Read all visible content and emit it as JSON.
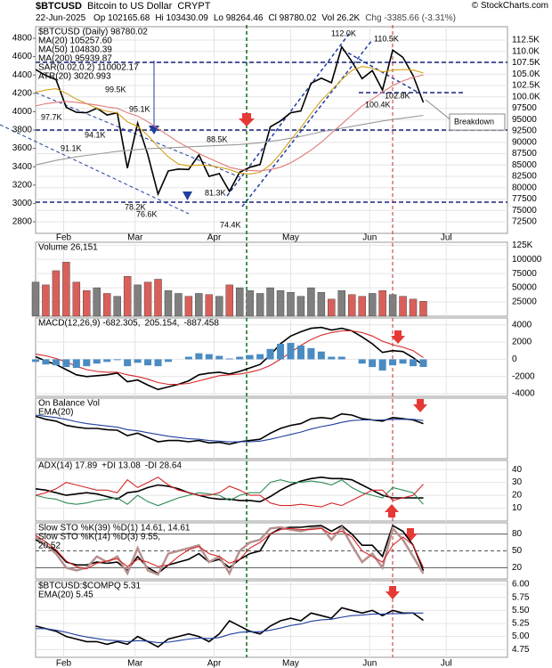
{
  "header": {
    "symbol": "$BTCUSD",
    "name": "Bitcoin to US Dollar",
    "exchange": "CRYPT",
    "credit": "© StockCharts.com",
    "date": "22-Jun-2025",
    "quote": [
      "Op 102165.68",
      "Hi 103430.09",
      "Lo 98264.46",
      "Cl 98780.02",
      "Vol 26.2K",
      "Chg -3385.66 (-3.31%)"
    ]
  },
  "chart_data": [
    {
      "type": "line",
      "x": [
        21,
        25,
        29,
        33,
        37,
        41,
        45,
        49,
        53,
        57,
        61,
        65,
        69,
        73,
        77,
        81,
        85,
        89,
        93,
        97,
        101,
        105,
        109,
        113,
        117,
        121,
        125,
        129,
        133,
        137,
        141,
        145,
        149,
        153,
        157,
        161,
        165,
        169,
        173
      ],
      "xlim": [
        21,
        206
      ],
      "xticks": [
        {
          "value": 32,
          "label": "Feb"
        },
        {
          "value": 60,
          "label": "Mar"
        },
        {
          "value": 91,
          "label": "Apr"
        },
        {
          "value": 121,
          "label": "May"
        },
        {
          "value": 152,
          "label": "Jun"
        },
        {
          "value": 182,
          "label": "Jul"
        }
      ],
      "ylim": [
        69950,
        115440
      ],
      "yticks": [
        {
          "value": 112500,
          "label": "112.5K"
        },
        {
          "value": 110000,
          "label": "110.0K"
        },
        {
          "value": 107500,
          "label": "107.5K"
        },
        {
          "value": 105000,
          "label": "105.0K"
        },
        {
          "value": 102500,
          "label": "102.5K"
        },
        {
          "value": 100000,
          "label": "100.0K"
        },
        97500,
        95000,
        92500,
        90000,
        87500,
        85000,
        82500,
        80000,
        77500,
        75000,
        72500
      ],
      "y2lim": [
        2674,
        4926
      ],
      "y2ticks": [
        4800,
        4600,
        4400,
        4200,
        4000,
        3800,
        3600,
        3400,
        3200,
        3000,
        2800
      ],
      "grid": true,
      "series": [
        {
          "name": "$BTCUSD (Daily) 98780.02",
          "color": "#000000",
          "values": [
            106000,
            104700,
            103800,
            97700,
            96600,
            96500,
            97500,
            96000,
            96500,
            84300,
            94200,
            87200,
            78600,
            83700,
            84100,
            84000,
            87200,
            82500,
            83100,
            79200,
            83400,
            84500,
            85100,
            93400,
            94700,
            96500,
            96900,
            103000,
            104100,
            103100,
            111000,
            107800,
            104000,
            105800,
            101500,
            110300,
            108700,
            104700,
            98780.02
          ]
        },
        {
          "name": "MA(20) 105257.60",
          "color": "#d4a017",
          "values": [
            101000,
            101500,
            101800,
            100800,
            99500,
            98500,
            97500,
            96800,
            96500,
            94500,
            93500,
            91500,
            89000,
            86800,
            85200,
            84800,
            85000,
            84900,
            84500,
            84000,
            83200,
            83000,
            83400,
            85000,
            87500,
            90500,
            93200,
            96300,
            99200,
            101500,
            103800,
            105800,
            106700,
            106300,
            105500,
            105900,
            106000,
            105900,
            105257.6
          ]
        },
        {
          "name": "MA(50) 104830.39",
          "color": "#e07a7a",
          "values": [
            98000,
            98500,
            98800,
            99000,
            98800,
            98500,
            98200,
            97800,
            97500,
            96500,
            95800,
            94500,
            93000,
            91500,
            90000,
            88800,
            87500,
            86500,
            85500,
            84500,
            84000,
            83800,
            83700,
            84000,
            84500,
            85500,
            86800,
            88300,
            90000,
            92000,
            94000,
            96000,
            98000,
            99500,
            101000,
            102500,
            103500,
            104300,
            104830.39
          ]
        },
        {
          "name": "MA(200) 95939.87",
          "color": "#9a9a9a",
          "values": [
            85000,
            85500,
            86000,
            86400,
            86800,
            87100,
            87400,
            87700,
            88000,
            88200,
            88400,
            88600,
            88700,
            88800,
            88900,
            89000,
            89100,
            89200,
            89300,
            89400,
            89500,
            89700,
            89900,
            90200,
            90500,
            90900,
            91300,
            91800,
            92300,
            92700,
            93100,
            93500,
            93900,
            94300,
            94700,
            95000,
            95300,
            95600,
            95939.87
          ]
        }
      ],
      "notes": [
        "SAR(0.02,0.2) 110002.17",
        "ATR(20) 3020.993"
      ],
      "annotations": [
        "112.0K",
        "110.5K",
        "102.8K",
        "100.4K",
        "99.5K",
        "97.7K",
        "95.1K",
        "94.1K",
        "91.1K",
        "88.5K",
        "81.3K",
        "78.2K",
        "76.6K",
        "74.4K",
        "Breakdown"
      ]
    },
    {
      "type": "bar",
      "ylim": [
        0,
        130000
      ],
      "yticks": [
        {
          "value": 125000,
          "label": "125K"
        },
        100000,
        75000,
        50000,
        25000
      ],
      "up_color": "#7f7f7f",
      "down_color": "#d9605a",
      "series": [
        {
          "name": "Volume 26,151",
          "color": "#000000",
          "values": [
            60000,
            55000,
            80000,
            95000,
            60000,
            45000,
            50000,
            40000,
            35000,
            70000,
            55000,
            60000,
            65000,
            45000,
            40000,
            35000,
            40000,
            38000,
            35000,
            55000,
            50000,
            45000,
            40000,
            50000,
            45000,
            42000,
            35000,
            50000,
            42000,
            30000,
            45000,
            38000,
            35000,
            40000,
            45000,
            38000,
            35000,
            30000,
            26151
          ]
        }
      ]
    },
    {
      "type": "line",
      "ylim": [
        -4300,
        4800
      ],
      "yticks": [
        4000,
        2000,
        0,
        -2000,
        -4000
      ],
      "series": [
        {
          "name": "MACD(12,26,9) -682.305,",
          "color": "#000000",
          "values": [
            300,
            -200,
            -600,
            -1200,
            -1800,
            -2000,
            -1900,
            -1800,
            -1600,
            -2600,
            -2400,
            -3000,
            -3500,
            -3200,
            -2900,
            -2500,
            -1800,
            -1600,
            -1500,
            -1700,
            -1400,
            -1000,
            -600,
            500,
            1800,
            2700,
            3200,
            3600,
            3700,
            3400,
            3600,
            3300,
            2600,
            1800,
            800,
            1000,
            900,
            200,
            -682.305
          ]
        },
        {
          "name": "205.154,",
          "color": "#d62728",
          "values": [
            600,
            400,
            100,
            -300,
            -800,
            -1200,
            -1400,
            -1500,
            -1500,
            -1800,
            -2000,
            -2300,
            -2700,
            -2900,
            -2900,
            -2800,
            -2500,
            -2200,
            -1900,
            -1800,
            -1700,
            -1500,
            -1200,
            -700,
            0,
            800,
            1600,
            2300,
            2800,
            3100,
            3300,
            3300,
            3100,
            2700,
            2100,
            1700,
            1400,
            1000,
            205.154
          ]
        },
        {
          "name": "-887.458",
          "color": "#4a8bc2",
          "type": "bar",
          "values": [
            -300,
            -600,
            -700,
            -900,
            -1000,
            -800,
            -500,
            -300,
            -100,
            -800,
            -400,
            -700,
            -800,
            -300,
            0,
            300,
            700,
            600,
            400,
            100,
            300,
            500,
            600,
            1200,
            1800,
            1900,
            1600,
            1300,
            900,
            300,
            300,
            0,
            -500,
            -900,
            -1300,
            -700,
            -500,
            -800,
            -887.458
          ]
        }
      ]
    },
    {
      "type": "line",
      "ylim": [
        0,
        100
      ],
      "series": [
        {
          "name": "On Balance Vol",
          "color": "#000000",
          "values": [
            70,
            65,
            62,
            55,
            52,
            50,
            50,
            48,
            47,
            38,
            42,
            35,
            28,
            30,
            30,
            28,
            30,
            26,
            27,
            24,
            28,
            30,
            32,
            42,
            50,
            55,
            58,
            66,
            68,
            66,
            74,
            72,
            66,
            64,
            62,
            68,
            66,
            64,
            58
          ]
        },
        {
          "name": "EMA(20)",
          "color": "#1f3fa0",
          "values": [
            72,
            70,
            68,
            65,
            61,
            58,
            56,
            54,
            52,
            48,
            46,
            43,
            40,
            37,
            35,
            33,
            32,
            30,
            29,
            28,
            28,
            28,
            29,
            32,
            36,
            40,
            44,
            49,
            53,
            56,
            60,
            63,
            64,
            64,
            64,
            65,
            65,
            65,
            63
          ]
        }
      ]
    },
    {
      "type": "line",
      "ylim": [
        0,
        47
      ],
      "yticks": [
        40,
        30,
        20,
        10
      ],
      "inline_legend": true,
      "series": [
        {
          "name": "ADX(14) 17.89",
          "color": "#000000",
          "values": [
            25,
            24,
            22,
            20,
            21,
            22,
            21,
            19,
            17,
            22,
            23,
            26,
            28,
            27,
            25,
            22,
            20,
            18,
            17,
            17,
            16,
            16,
            15,
            19,
            24,
            28,
            31,
            33,
            34,
            33,
            33,
            32,
            28,
            24,
            20,
            18,
            18,
            18,
            17.89
          ]
        },
        {
          "name": "+DI 13.08",
          "color": "#2e8b57",
          "values": [
            20,
            18,
            17,
            14,
            13,
            14,
            16,
            17,
            18,
            13,
            20,
            15,
            12,
            15,
            18,
            20,
            22,
            21,
            20,
            16,
            20,
            22,
            22,
            30,
            32,
            30,
            30,
            31,
            30,
            28,
            32,
            26,
            22,
            20,
            18,
            26,
            24,
            22,
            13.08
          ]
        },
        {
          "name": "-DI 28.64",
          "color": "#d62728",
          "values": [
            20,
            22,
            25,
            30,
            28,
            26,
            24,
            24,
            22,
            32,
            26,
            30,
            34,
            28,
            24,
            22,
            20,
            20,
            22,
            27,
            24,
            20,
            20,
            14,
            12,
            12,
            13,
            12,
            11,
            14,
            12,
            16,
            20,
            24,
            24,
            16,
            18,
            20,
            28.64
          ]
        }
      ]
    },
    {
      "type": "line",
      "ylim": [
        0,
        100
      ],
      "yticks": [
        80,
        50,
        20
      ],
      "series": [
        {
          "name": "Slow STO %K(39) %D(1) 14.61, 14.61",
          "color": "#000000",
          "values": [
            70,
            60,
            50,
            30,
            25,
            25,
            30,
            28,
            30,
            15,
            40,
            20,
            10,
            25,
            30,
            35,
            45,
            30,
            35,
            20,
            35,
            45,
            50,
            80,
            90,
            92,
            92,
            94,
            95,
            85,
            95,
            80,
            60,
            60,
            40,
            95,
            85,
            60,
            14.61
          ]
        },
        {
          "name": "Slow STO %K(14) %D(3) 9.55,",
          "color": "#b89090",
          "values": [
            75,
            60,
            45,
            20,
            15,
            20,
            40,
            30,
            40,
            10,
            55,
            15,
            8,
            45,
            50,
            55,
            60,
            30,
            40,
            10,
            50,
            65,
            70,
            90,
            92,
            88,
            85,
            90,
            92,
            70,
            92,
            60,
            30,
            45,
            20,
            90,
            70,
            40,
            9.55
          ]
        },
        {
          "name": "20.52",
          "color": "#d62728",
          "values": [
            78,
            66,
            52,
            32,
            22,
            18,
            28,
            32,
            36,
            22,
            35,
            30,
            22,
            25,
            40,
            52,
            58,
            45,
            40,
            28,
            35,
            55,
            65,
            80,
            88,
            90,
            88,
            88,
            90,
            80,
            85,
            75,
            50,
            40,
            30,
            60,
            75,
            60,
            20.52
          ]
        }
      ]
    },
    {
      "type": "line",
      "ylim": [
        4.6,
        6.07
      ],
      "yticks": [
        {
          "value": 6,
          "label": "6.00"
        },
        5.75,
        {
          "value": 5.5,
          "label": "5.50"
        },
        5.25,
        {
          "value": 5,
          "label": "5.00"
        },
        4.75
      ],
      "series": [
        {
          "name": "$BTCUSD:$COMPQ 5.31",
          "color": "#000000",
          "values": [
            5.2,
            5.15,
            5.1,
            5.0,
            4.95,
            4.9,
            4.9,
            4.85,
            4.9,
            4.85,
            5.0,
            4.9,
            4.8,
            4.95,
            5.0,
            5.05,
            5.0,
            4.9,
            5.05,
            5.3,
            5.2,
            5.1,
            5.05,
            5.2,
            5.3,
            5.35,
            5.3,
            5.45,
            5.4,
            5.35,
            5.55,
            5.5,
            5.45,
            5.5,
            5.4,
            5.5,
            5.45,
            5.45,
            5.31
          ]
        },
        {
          "name": "EMA(20) 5.45",
          "color": "#1f3fa0",
          "values": [
            5.15,
            5.15,
            5.12,
            5.08,
            5.03,
            4.99,
            4.96,
            4.93,
            4.92,
            4.9,
            4.92,
            4.91,
            4.88,
            4.89,
            4.92,
            4.95,
            4.97,
            4.96,
            4.98,
            5.04,
            5.08,
            5.09,
            5.09,
            5.12,
            5.16,
            5.21,
            5.24,
            5.29,
            5.32,
            5.33,
            5.37,
            5.4,
            5.41,
            5.43,
            5.43,
            5.44,
            5.44,
            5.45,
            5.45
          ]
        }
      ]
    }
  ]
}
